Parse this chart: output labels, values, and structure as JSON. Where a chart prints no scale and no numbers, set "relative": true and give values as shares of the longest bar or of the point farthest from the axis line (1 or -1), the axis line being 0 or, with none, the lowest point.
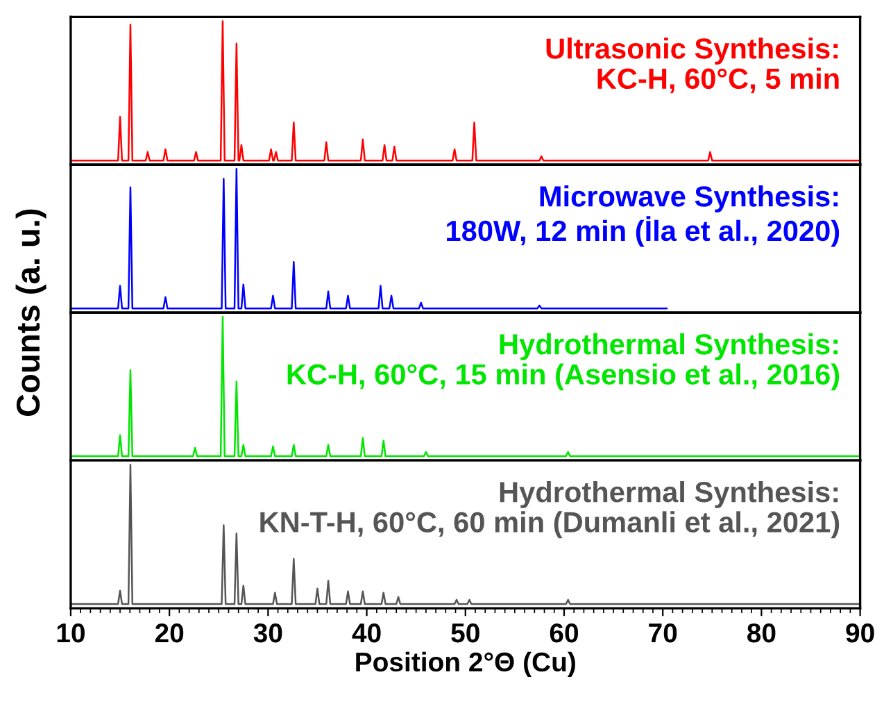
{
  "chart_data": [
    {
      "type": "line",
      "relative": true,
      "ylabel": "Counts (a. u.)",
      "xlim": [
        10,
        90
      ],
      "tick_labels": false,
      "series": [
        {
          "name": "Ultrasonic Synthesis:\nKC-H, 60°C, 5 min",
          "color": "#ff0000",
          "x": [
            10,
            14.8,
            15.0,
            15.2,
            15.85,
            16.05,
            16.25,
            17.6,
            17.8,
            18.0,
            19.4,
            19.6,
            19.8,
            22.5,
            22.7,
            22.9,
            25.2,
            25.4,
            25.6,
            26.6,
            26.8,
            27.0,
            27.1,
            27.3,
            27.5,
            30.1,
            30.3,
            30.5,
            30.6,
            30.8,
            31.0,
            32.4,
            32.6,
            32.8,
            35.7,
            35.9,
            36.1,
            39.4,
            39.6,
            39.8,
            41.6,
            41.8,
            42.0,
            42.6,
            42.8,
            43.0,
            48.7,
            48.9,
            49.1,
            50.7,
            50.9,
            51.1,
            57.5,
            57.7,
            57.9,
            74.6,
            74.8,
            75.0,
            90
          ],
          "values": [
            0.01,
            0.01,
            0.32,
            0.01,
            0.01,
            0.975,
            0.01,
            0.01,
            0.07,
            0.01,
            0.01,
            0.09,
            0.01,
            0.01,
            0.07,
            0.01,
            0.01,
            1,
            0.01,
            0.01,
            0.84,
            0.01,
            0.01,
            0.12,
            0.01,
            0.01,
            0.09,
            0.01,
            0.01,
            0.07,
            0.01,
            0.01,
            0.28,
            0.01,
            0.01,
            0.14,
            0.01,
            0.01,
            0.16,
            0.01,
            0.01,
            0.12,
            0.01,
            0.01,
            0.11,
            0.01,
            0.01,
            0.09,
            0.01,
            0.01,
            0.28,
            0.01,
            0.01,
            0.04,
            0.01,
            0.01,
            0.07,
            0.01,
            0.01
          ]
        }
      ]
    },
    {
      "type": "line",
      "relative": true,
      "xlim": [
        10,
        90
      ],
      "tick_labels": false,
      "series": [
        {
          "name": "Microwave Synthesis:\n180W, 12 min (İla et al., 2020)",
          "color": "#0000ff",
          "x": [
            10,
            14.8,
            15.0,
            15.2,
            15.85,
            16.05,
            16.25,
            19.4,
            19.6,
            19.8,
            25.3,
            25.5,
            25.7,
            26.6,
            26.8,
            27.0,
            27.3,
            27.5,
            27.7,
            30.3,
            30.5,
            30.7,
            32.4,
            32.6,
            32.8,
            35.9,
            36.1,
            36.3,
            37.9,
            38.1,
            38.3,
            41.2,
            41.4,
            41.6,
            42.3,
            42.5,
            42.7,
            45.3,
            45.5,
            45.7,
            57.3,
            57.5,
            57.7,
            70.4
          ],
          "values": [
            0.01,
            0.01,
            0.17,
            0.01,
            0.01,
            0.87,
            0.01,
            0.01,
            0.09,
            0.01,
            0.01,
            0.93,
            0.01,
            0.01,
            1,
            0.01,
            0.01,
            0.18,
            0.01,
            0.01,
            0.1,
            0.01,
            0.01,
            0.34,
            0.01,
            0.01,
            0.13,
            0.01,
            0.01,
            0.1,
            0.01,
            0.01,
            0.17,
            0.01,
            0.01,
            0.1,
            0.01,
            0.01,
            0.05,
            0.01,
            0.01,
            0.03,
            0.01,
            0.01
          ]
        }
      ]
    },
    {
      "type": "line",
      "relative": true,
      "xlim": [
        10,
        90
      ],
      "tick_labels": false,
      "series": [
        {
          "name": "Hydrothermal Synthesis:\nKC-H, 60°C, 15 min (Asensio et al., 2016)",
          "color": "#00e600",
          "x": [
            10,
            14.8,
            15.0,
            15.2,
            15.85,
            16.05,
            16.25,
            22.4,
            22.6,
            22.8,
            25.2,
            25.4,
            25.6,
            26.6,
            26.8,
            27.0,
            27.3,
            27.5,
            27.7,
            30.3,
            30.5,
            30.7,
            32.4,
            32.6,
            32.8,
            35.9,
            36.1,
            36.3,
            39.4,
            39.6,
            39.8,
            41.5,
            41.7,
            41.9,
            45.8,
            46.0,
            46.2,
            60.2,
            60.4,
            60.6,
            90
          ],
          "values": [
            0.01,
            0.01,
            0.16,
            0.01,
            0.01,
            0.62,
            0.01,
            0.01,
            0.07,
            0.01,
            0.01,
            1,
            0.01,
            0.01,
            0.54,
            0.01,
            0.01,
            0.09,
            0.01,
            0.01,
            0.08,
            0.01,
            0.01,
            0.09,
            0.01,
            0.01,
            0.09,
            0.01,
            0.01,
            0.14,
            0.01,
            0.01,
            0.12,
            0.01,
            0.01,
            0.04,
            0.01,
            0.01,
            0.04,
            0.01,
            0.01
          ]
        }
      ]
    },
    {
      "type": "line",
      "relative": true,
      "xlabel": "Position 2°Θ (Cu)",
      "xlim": [
        10,
        90
      ],
      "xticks": [
        10,
        20,
        30,
        40,
        50,
        60,
        70,
        80,
        90
      ],
      "tick_labels": "x",
      "series": [
        {
          "name": "Hydrothermal Synthesis:\nKN-T-H, 60°C, 60 min (Dumanli et al., 2021)",
          "color": "#555555",
          "x": [
            10,
            14.8,
            15.0,
            15.2,
            15.85,
            16.05,
            16.25,
            25.3,
            25.5,
            25.7,
            26.6,
            26.8,
            27.0,
            27.3,
            27.5,
            27.7,
            30.5,
            30.7,
            30.9,
            32.4,
            32.6,
            32.8,
            34.8,
            35.0,
            35.2,
            35.9,
            36.1,
            36.3,
            37.9,
            38.1,
            38.3,
            39.4,
            39.6,
            39.8,
            41.5,
            41.7,
            41.9,
            43.0,
            43.2,
            43.4,
            48.9,
            49.1,
            49.3,
            50.2,
            50.4,
            50.6,
            60.2,
            60.4,
            60.6,
            90
          ],
          "values": [
            0.01,
            0.01,
            0.105,
            0.01,
            0.01,
            1,
            0.01,
            0.01,
            0.57,
            0.01,
            0.01,
            0.51,
            0.01,
            0.01,
            0.14,
            0.01,
            0.01,
            0.09,
            0.01,
            0.01,
            0.33,
            0.01,
            0.01,
            0.12,
            0.01,
            0.01,
            0.175,
            0.01,
            0.01,
            0.1,
            0.01,
            0.01,
            0.1,
            0.01,
            0.01,
            0.09,
            0.01,
            0.01,
            0.06,
            0.01,
            0.01,
            0.04,
            0.01,
            0.01,
            0.04,
            0.01,
            0.01,
            0.04,
            0.01,
            0.01
          ]
        }
      ]
    }
  ]
}
